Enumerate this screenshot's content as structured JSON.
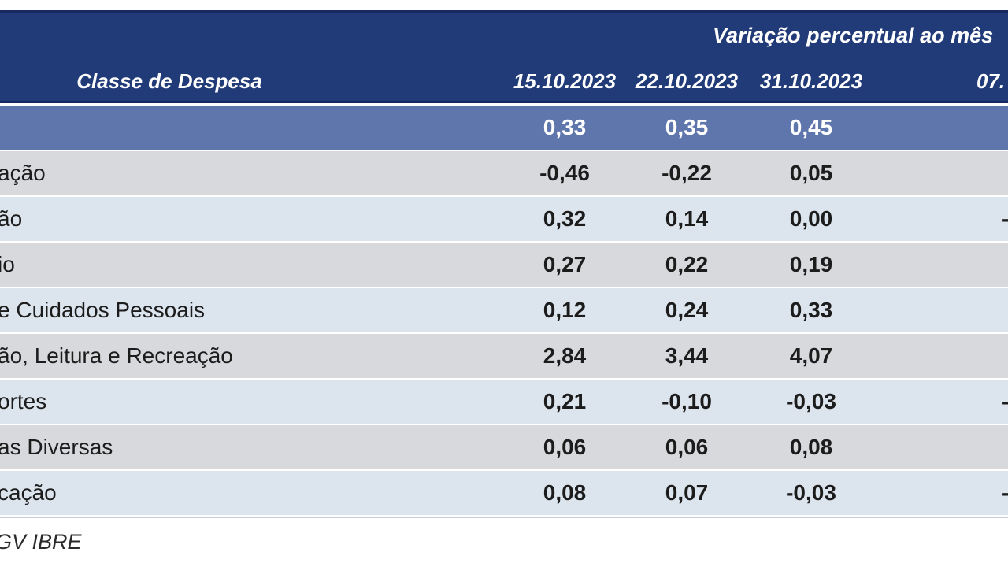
{
  "colors": {
    "header_bg": "#213a78",
    "header_edge": "#17295e",
    "highlight_row_bg": "#5f76ad",
    "row_alt_gray": "#d8d9dc",
    "row_alt_blue": "#dce4ed",
    "text_dark": "#1c1c1c",
    "text_white": "#ffffff",
    "bottom_rule": "#c2cdd9"
  },
  "header": {
    "group_title": "Variação percentual ao mês",
    "label_column": "Classe de Despesa",
    "date_columns": [
      "15.10.2023",
      "22.10.2023",
      "31.10.2023",
      "07."
    ]
  },
  "table": {
    "rows": [
      {
        "label": "",
        "v1": "0,33",
        "v2": "0,35",
        "v3": "0,45",
        "v4": ""
      },
      {
        "label": "ação",
        "v1": "-0,46",
        "v2": "-0,22",
        "v3": "0,05",
        "v4": ""
      },
      {
        "label": "ão",
        "v1": "0,32",
        "v2": "0,14",
        "v3": "0,00",
        "v4": "-"
      },
      {
        "label": "io",
        "v1": "0,27",
        "v2": "0,22",
        "v3": "0,19",
        "v4": ""
      },
      {
        "label": "e Cuidados Pessoais",
        "v1": "0,12",
        "v2": "0,24",
        "v3": "0,33",
        "v4": ""
      },
      {
        "label": "ão, Leitura e Recreação",
        "v1": "2,84",
        "v2": "3,44",
        "v3": "4,07",
        "v4": ""
      },
      {
        "label": "ortes",
        "v1": "0,21",
        "v2": "-0,10",
        "v3": "-0,03",
        "v4": "-"
      },
      {
        "label": "as Diversas",
        "v1": "0,06",
        "v2": "0,06",
        "v3": "0,08",
        "v4": ""
      },
      {
        "label": "cação",
        "v1": "0,08",
        "v2": "0,07",
        "v3": "-0,03",
        "v4": "-"
      }
    ]
  },
  "footer": {
    "source_text": "GV IBRE"
  },
  "chart_data": {
    "type": "table",
    "title": "Variação percentual ao mês",
    "row_header": "Classe de Despesa",
    "columns": [
      "15.10.2023",
      "22.10.2023",
      "31.10.2023",
      "07."
    ],
    "rows": [
      {
        "label": "",
        "values": [
          0.33,
          0.35,
          0.45
        ],
        "highlight": true
      },
      {
        "label": "ação",
        "values": [
          -0.46,
          -0.22,
          0.05
        ]
      },
      {
        "label": "ão",
        "values": [
          0.32,
          0.14,
          0.0
        ]
      },
      {
        "label": "io",
        "values": [
          0.27,
          0.22,
          0.19
        ]
      },
      {
        "label": "e Cuidados Pessoais",
        "values": [
          0.12,
          0.24,
          0.33
        ]
      },
      {
        "label": "ão, Leitura e Recreação",
        "values": [
          2.84,
          3.44,
          4.07
        ]
      },
      {
        "label": "ortes",
        "values": [
          0.21,
          -0.1,
          -0.03
        ]
      },
      {
        "label": "as Diversas",
        "values": [
          0.06,
          0.06,
          0.08
        ]
      },
      {
        "label": "cação",
        "values": [
          0.08,
          0.07,
          -0.03
        ]
      }
    ],
    "source": "GV IBRE"
  }
}
